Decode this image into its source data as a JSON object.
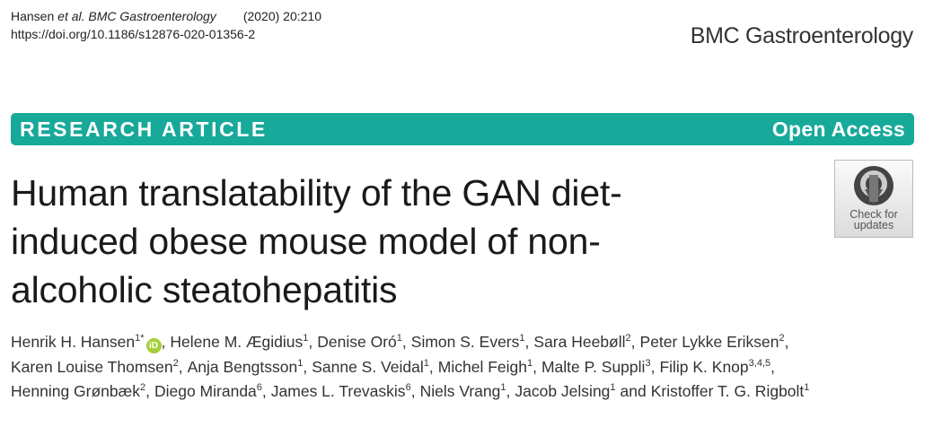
{
  "header": {
    "author": "Hansen",
    "etal": "et al.",
    "journal_italic": "BMC Gastroenterology",
    "year_volume": "(2020) 20:210",
    "doi": "https://doi.org/10.1186/s12876-020-01356-2",
    "journal": "BMC Gastroenterology"
  },
  "banner": {
    "article_type": "RESEARCH ARTICLE",
    "access": "Open Access"
  },
  "badge": {
    "line1": "Check for",
    "line2": "updates"
  },
  "title": {
    "lines": [
      "Human translatability of the GAN diet-",
      "induced obese mouse model of non-",
      "alcoholic steatohepatitis"
    ]
  },
  "authors": {
    "lines": [
      [
        {
          "name": "Henrik H. Hansen",
          "aff": "1*",
          "orcid": "iD",
          "sep": ","
        },
        {
          "name": "Helene M. Ægidius",
          "aff": "1",
          "sep": ","
        },
        {
          "name": "Denise Oró",
          "aff": "1",
          "sep": ","
        },
        {
          "name": "Simon S. Evers",
          "aff": "1",
          "sep": ","
        },
        {
          "name": "Sara Heebøll",
          "aff": "2",
          "sep": ","
        },
        {
          "name": "Peter Lykke Eriksen",
          "aff": "2",
          "sep": ","
        }
      ],
      [
        {
          "name": "Karen Louise Thomsen",
          "aff": "2",
          "sep": ","
        },
        {
          "name": "Anja Bengtsson",
          "aff": "1",
          "sep": ","
        },
        {
          "name": "Sanne S. Veidal",
          "aff": "1",
          "sep": ","
        },
        {
          "name": "Michel Feigh",
          "aff": "1",
          "sep": ","
        },
        {
          "name": "Malte P. Suppli",
          "aff": "3",
          "sep": ","
        },
        {
          "name": "Filip K. Knop",
          "aff": "3,4,5",
          "sep": ","
        }
      ],
      [
        {
          "name": "Henning Grønbæk",
          "aff": "2",
          "sep": ","
        },
        {
          "name": "Diego Miranda",
          "aff": "6",
          "sep": ","
        },
        {
          "name": "James L. Trevaskis",
          "aff": "6",
          "sep": ","
        },
        {
          "name": "Niels Vrang",
          "aff": "1",
          "sep": ","
        },
        {
          "name": "Jacob Jelsing",
          "aff": "1",
          "conj": "and"
        },
        {
          "name": "Kristoffer T. G. Rigbolt",
          "aff": "1"
        }
      ]
    ]
  }
}
